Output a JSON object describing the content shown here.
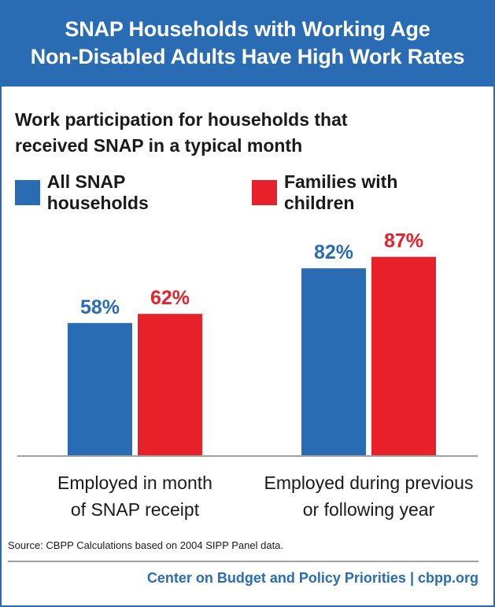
{
  "header": {
    "title_line1": "SNAP Households with Working Age",
    "title_line2": "Non-Disabled Adults Have High Work Rates"
  },
  "chart_data": {
    "type": "bar",
    "title": "Work participation for households that received SNAP in a typical month",
    "subtitle_line1": "Work participation for households that",
    "subtitle_line2": "received SNAP in a typical month",
    "categories": [
      [
        "Employed in month",
        "of SNAP receipt"
      ],
      [
        "Employed during previous",
        "or following year"
      ]
    ],
    "series": [
      {
        "name": "All SNAP households",
        "color": "#2a6cb3",
        "values": [
          58,
          82
        ],
        "labels": [
          "58%",
          "82%"
        ]
      },
      {
        "name": "Families with children",
        "color": "#e8202a",
        "values": [
          62,
          87
        ],
        "labels": [
          "62%",
          "87%"
        ]
      }
    ],
    "ylim": [
      0,
      100
    ],
    "grid": false,
    "legend_position": "top-left"
  },
  "footer": {
    "source": "Source: CBPP Calculations based on 2004 SIPP Panel data.",
    "org": "Center on Budget and Policy Priorities",
    "separator": "|",
    "site": "cbpp.org"
  }
}
